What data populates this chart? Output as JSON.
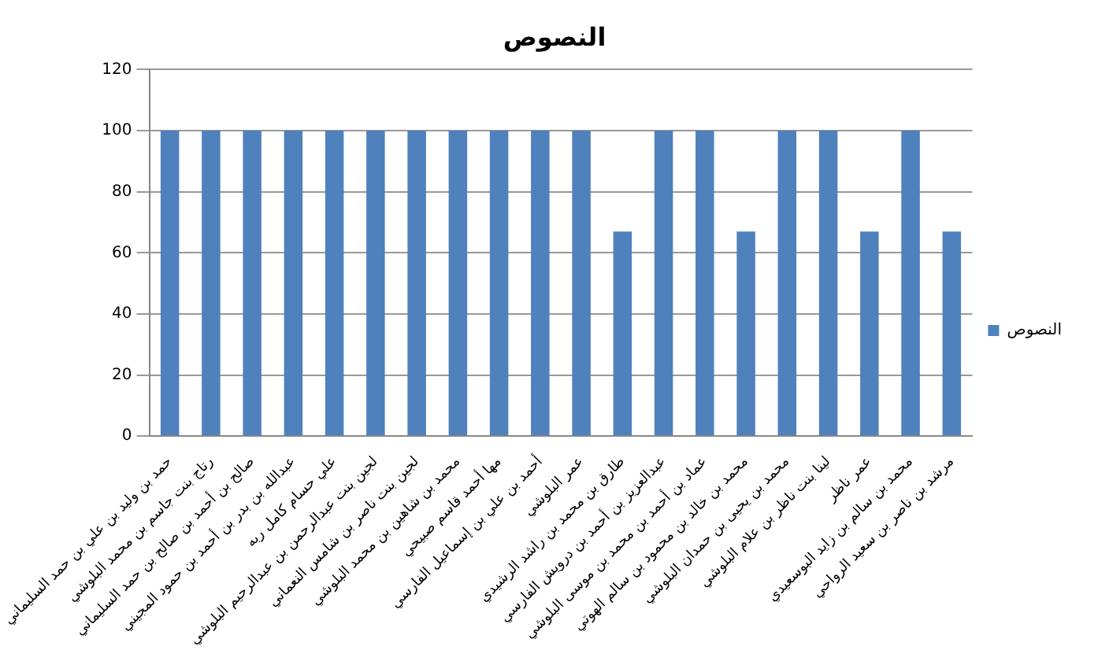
{
  "chart_data": {
    "type": "bar",
    "title": "النصوص",
    "categories": [
      "حمد بن وليد بن علي بن حمد السليماني",
      "رتاج بنت جاسم بن محمد البلوشي",
      "صالح بن أحمد بن صالح بن حمد السليماني",
      "عبدالله بن بدر بن أحمد بن حمود المجيني",
      "علي حسام كامل ربه",
      "لجين بنت عبدالرحمن بن عبدالرحيم البلوشي",
      "لجين بنت ناصر بن شامس النعماني",
      "محمد بن شاهين بن محمد البلوشي",
      "مها أحمد قاسم صبيحي",
      "أحمد بن علي بن إسماعيل الفارسي",
      "عمر البلوشي",
      "طارق بن محمد بن راشد الرشيدي",
      "عبدالعزيز بن أحمد بن درويش الفارسي",
      "عماد بن أحمد بن محمد بن موسى البلوشي",
      "محمد بن خالد بن محمود بن سالم الهوتي",
      "محمد بن يحيى بن حمدان البلوشي",
      "لينا بنت ناظر بن علام البلوشي",
      "عمر ناظر",
      "محمد بن سالم بن زايد البوسعيدي",
      "مرشد بن ناصر بن سعيد الرواحي"
    ],
    "series": [
      {
        "name": "النصوص",
        "color": "#4f81bd",
        "values": [
          100,
          100,
          100,
          100,
          100,
          100,
          100,
          100,
          100,
          100,
          100,
          67,
          100,
          100,
          67,
          100,
          100,
          67,
          100,
          67
        ]
      }
    ],
    "ylim": [
      0,
      120
    ],
    "yticks": [
      0,
      20,
      40,
      60,
      80,
      100,
      120
    ],
    "grid": "y",
    "legend": "right"
  }
}
